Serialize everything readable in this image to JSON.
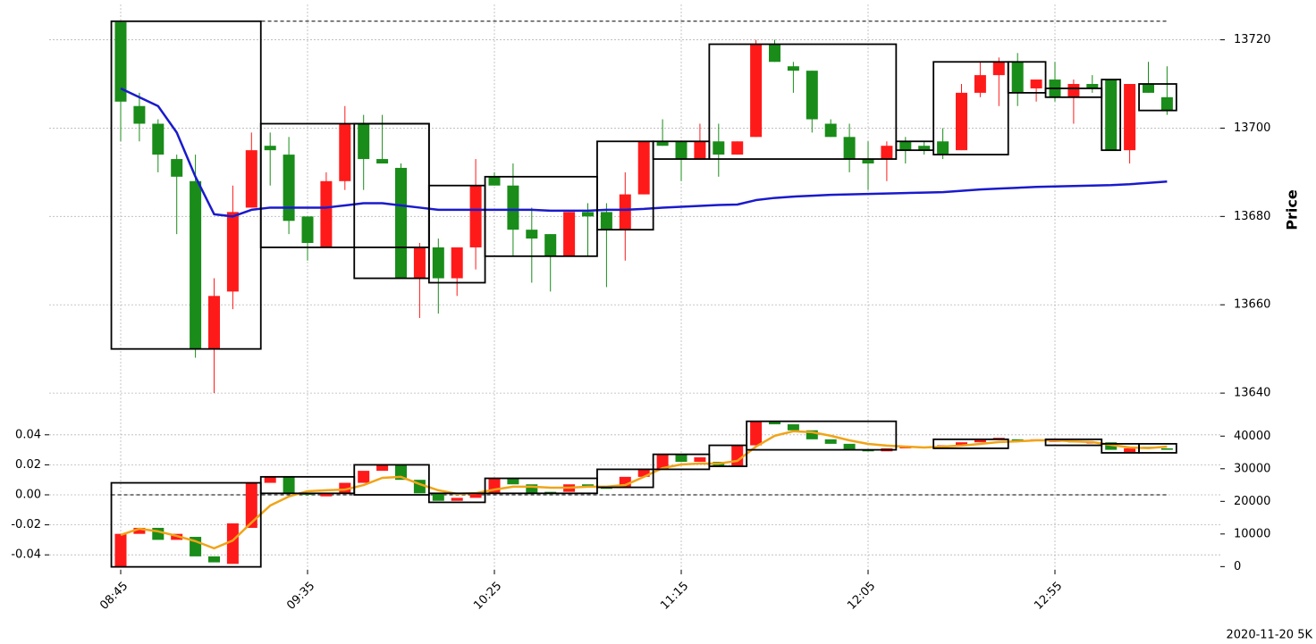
{
  "chart_data": [
    {
      "type": "candlestick",
      "ylabel": "Price",
      "ylim": [
        13638,
        13728
      ],
      "yticks": [
        13640,
        13660,
        13680,
        13700,
        13720
      ],
      "grid": true,
      "up_color": "#ff1a1a",
      "down_color": "#198c19",
      "open": [
        13724,
        13705,
        13701,
        13693,
        13688,
        13650,
        13663,
        13682,
        13696,
        13694,
        13680,
        13673,
        13688,
        13701,
        13693,
        13691,
        13666,
        13673,
        13666,
        13673,
        13689,
        13687,
        13677,
        13676,
        13671,
        13681,
        13681,
        13677,
        13685,
        13697,
        13697,
        13693,
        13697,
        13694,
        13698,
        13719,
        13714,
        13713,
        13701,
        13698,
        13693,
        13693,
        13697,
        13696,
        13697,
        13695,
        13708,
        13712,
        13715,
        13709,
        13711,
        13707,
        13710,
        13711,
        13695,
        13710,
        13707
      ],
      "high": [
        13724,
        13708,
        13702,
        13694,
        13694,
        13666,
        13687,
        13699,
        13699,
        13698,
        13680,
        13690,
        13705,
        13703,
        13703,
        13692,
        13674,
        13675,
        13673,
        13693,
        13690,
        13692,
        13682,
        13676,
        13681,
        13683,
        13683,
        13690,
        13697,
        13702,
        13697,
        13701,
        13701,
        13697,
        13720,
        13720,
        13715,
        13713,
        13702,
        13701,
        13697,
        13697,
        13698,
        13697,
        13700,
        13710,
        13715,
        13716,
        13717,
        13711,
        13715,
        13711,
        13712,
        13711,
        13710,
        13715,
        13714
      ],
      "low": [
        13697,
        13697,
        13690,
        13676,
        13648,
        13640,
        13659,
        13682,
        13687,
        13676,
        13670,
        13673,
        13686,
        13686,
        13692,
        13666,
        13657,
        13658,
        13662,
        13668,
        13687,
        13671,
        13665,
        13663,
        13671,
        13671,
        13664,
        13670,
        13685,
        13696,
        13688,
        13693,
        13689,
        13694,
        13698,
        13715,
        13708,
        13699,
        13698,
        13690,
        13686,
        13688,
        13692,
        13694,
        13693,
        13695,
        13707,
        13705,
        13705,
        13706,
        13706,
        13701,
        13708,
        13695,
        13692,
        13708,
        13703
      ],
      "close": [
        13706,
        13701,
        13694,
        13689,
        13650,
        13662,
        13681,
        13695,
        13695,
        13679,
        13674,
        13688,
        13701,
        13693,
        13692,
        13666,
        13673,
        13666,
        13673,
        13687,
        13687,
        13677,
        13675,
        13671,
        13681,
        13680,
        13677,
        13685,
        13697,
        13696,
        13693,
        13697,
        13694,
        13697,
        13719,
        13715,
        13713,
        13702,
        13698,
        13693,
        13692,
        13696,
        13695,
        13695,
        13694,
        13708,
        13712,
        13715,
        13708,
        13711,
        13707,
        13710,
        13709,
        13695,
        13710,
        13708,
        13704
      ],
      "line": {
        "color": "#1a1acc",
        "values": [
          13709,
          13707,
          13705,
          13699,
          13689,
          13680.5,
          13680,
          13681.5,
          13682,
          13682,
          13682,
          13682,
          13682.5,
          13683,
          13683,
          13682.5,
          13682,
          13681.5,
          13681.5,
          13681.5,
          13681.5,
          13681.5,
          13681.5,
          13681.3,
          13681.3,
          13681.3,
          13681.5,
          13681.5,
          13681.7,
          13682,
          13682.2,
          13682.4,
          13682.6,
          13682.7,
          13683.7,
          13684.2,
          13684.5,
          13684.7,
          13684.9,
          13685,
          13685.1,
          13685.2,
          13685.3,
          13685.4,
          13685.5,
          13685.8,
          13686.1,
          13686.3,
          13686.5,
          13686.7,
          13686.8,
          13686.9,
          13687,
          13687.1,
          13687.3,
          13687.6,
          13687.9
        ]
      },
      "boxes": [
        {
          "start": 0,
          "end": 7,
          "high": 13724.2,
          "low": 13650
        },
        {
          "start": 8,
          "end": 16,
          "high": 13701,
          "low": 13673
        },
        {
          "start": 13,
          "end": 16,
          "high": 13701,
          "low": 13666
        },
        {
          "start": 17,
          "end": 19,
          "high": 13687,
          "low": 13665
        },
        {
          "start": 20,
          "end": 25,
          "high": 13689,
          "low": 13671
        },
        {
          "start": 26,
          "end": 28,
          "high": 13697,
          "low": 13677
        },
        {
          "start": 29,
          "end": 31,
          "high": 13697,
          "low": 13693
        },
        {
          "start": 32,
          "end": 41,
          "high": 13719,
          "low": 13693
        },
        {
          "start": 42,
          "end": 43,
          "high": 13697,
          "low": 13695
        },
        {
          "start": 44,
          "end": 47,
          "high": 13715,
          "low": 13694
        },
        {
          "start": 48,
          "end": 49,
          "high": 13715,
          "low": 13708
        },
        {
          "start": 50,
          "end": 52,
          "high": 13709,
          "low": 13707
        },
        {
          "start": 53,
          "end": 53,
          "high": 13711,
          "low": 13695
        },
        {
          "start": 55,
          "end": 56,
          "high": 13710,
          "low": 13704
        }
      ],
      "hline": 13724.2
    },
    {
      "type": "candlestick",
      "note": "2020-11-20 5K",
      "categories": [
        "08:45",
        null,
        null,
        null,
        null,
        null,
        null,
        null,
        null,
        null,
        "09:35",
        null,
        null,
        null,
        null,
        null,
        null,
        null,
        null,
        null,
        "10:25",
        null,
        null,
        null,
        null,
        null,
        null,
        null,
        null,
        null,
        "11:15",
        null,
        null,
        null,
        null,
        null,
        null,
        null,
        null,
        null,
        "12:05",
        null,
        null,
        null,
        null,
        null,
        null,
        null,
        null,
        null,
        "12:55",
        null,
        null,
        null,
        null,
        null,
        null
      ],
      "ylim": [
        -0.05,
        0.05
      ],
      "yticks": [
        -0.04,
        -0.02,
        {
          "value": 0,
          "label": "0.00"
        },
        0.02,
        0.04
      ],
      "grid": true,
      "y2lim": [
        -1000,
        45000
      ],
      "y2ticks": [
        0,
        10000,
        20000,
        30000,
        40000
      ],
      "up_color": "#ff1a1a",
      "down_color": "#198c19",
      "open": [
        -0.048,
        -0.026,
        -0.022,
        -0.03,
        -0.028,
        -0.041,
        -0.046,
        -0.022,
        0.008,
        0.012,
        0.001,
        -0.001,
        0.001,
        0.008,
        0.016,
        0.02,
        0.01,
        0.001,
        -0.004,
        -0.002,
        0.001,
        0.011,
        0.007,
        0.002,
        0.002,
        0.007,
        0.005,
        0.005,
        0.012,
        0.017,
        0.027,
        0.022,
        0.022,
        0.019,
        0.033,
        0.049,
        0.047,
        0.043,
        0.037,
        0.034,
        0.03,
        0.029,
        0.031,
        0.032,
        0.032,
        0.033,
        0.035,
        0.037,
        0.037,
        0.036,
        0.036,
        0.036,
        0.035,
        0.035,
        0.028,
        0.032,
        0.031
      ],
      "close": [
        -0.026,
        -0.022,
        -0.03,
        -0.026,
        -0.041,
        -0.045,
        -0.019,
        0.008,
        0.012,
        0.001,
        0,
        0.001,
        0.008,
        0.016,
        0.02,
        0.01,
        0.001,
        -0.004,
        -0.002,
        0.001,
        0.011,
        0.007,
        0.001,
        0.001,
        0.007,
        0.005,
        0.004,
        0.012,
        0.017,
        0.027,
        0.022,
        0.025,
        0.019,
        0.033,
        0.049,
        0.047,
        0.043,
        0.037,
        0.034,
        0.03,
        0.029,
        0.031,
        0.032,
        0.031,
        0.033,
        0.035,
        0.037,
        0.038,
        0.036,
        0.037,
        0.036,
        0.035,
        0.035,
        0.03,
        0.031,
        0.031,
        0.03
      ],
      "line": {
        "color": "#f0a418",
        "axis": "y2",
        "values": [
          9700,
          11600,
          10800,
          9400,
          7800,
          5600,
          8000,
          13500,
          18700,
          21500,
          23100,
          23400,
          23600,
          25000,
          27200,
          27500,
          25300,
          23400,
          22300,
          22500,
          23600,
          24500,
          24500,
          24200,
          24200,
          24500,
          24500,
          25000,
          27500,
          30200,
          31300,
          31600,
          31600,
          32400,
          36800,
          40100,
          41500,
          41200,
          40100,
          38700,
          37600,
          37100,
          36800,
          36500,
          36800,
          37100,
          37600,
          38200,
          38400,
          38700,
          38700,
          38400,
          38200,
          37300,
          36500,
          36300,
          36800
        ]
      },
      "boxes": [
        {
          "start": 0,
          "end": 7,
          "high": 0.008,
          "low": -0.048
        },
        {
          "start": 8,
          "end": 12,
          "high": 0.012,
          "low": 0.001
        },
        {
          "start": 13,
          "end": 16,
          "high": 0.02,
          "low": 0
        },
        {
          "start": 17,
          "end": 19,
          "high": 0.001,
          "low": -0.005
        },
        {
          "start": 20,
          "end": 25,
          "high": 0.011,
          "low": 0.001
        },
        {
          "start": 26,
          "end": 28,
          "high": 0.017,
          "low": 0.005
        },
        {
          "start": 29,
          "end": 31,
          "high": 0.027,
          "low": 0.017
        },
        {
          "start": 32,
          "end": 33,
          "high": 0.033,
          "low": 0.019
        },
        {
          "start": 34,
          "end": 41,
          "high": 0.049,
          "low": 0.03
        },
        {
          "start": 44,
          "end": 47,
          "high": 0.037,
          "low": 0.031
        },
        {
          "start": 50,
          "end": 52,
          "high": 0.037,
          "low": 0.033
        },
        {
          "start": 53,
          "end": 54,
          "high": 0.034,
          "low": 0.028
        },
        {
          "start": 55,
          "end": 56,
          "high": 0.034,
          "low": 0.028
        }
      ],
      "hline": 0
    }
  ]
}
